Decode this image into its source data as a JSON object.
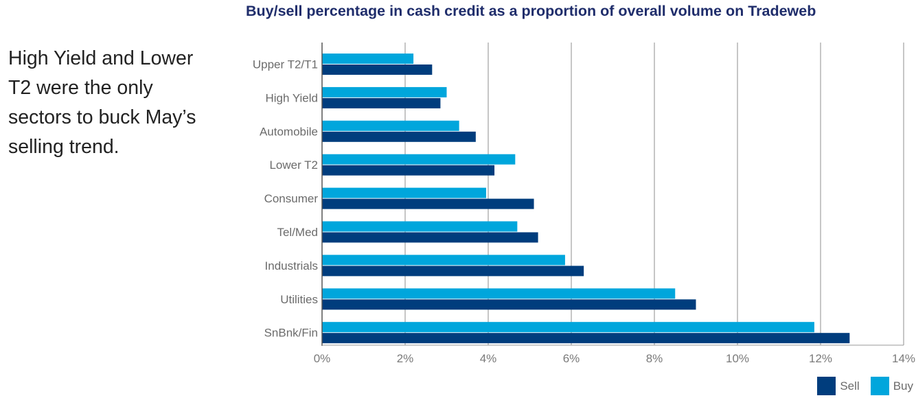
{
  "caption": {
    "lines": [
      "High Yield and Lower",
      "T2 were the only",
      "sectors to buck May’s",
      "selling trend."
    ]
  },
  "chart_data": {
    "type": "bar",
    "orientation": "horizontal",
    "title": "Buy/sell percentage in cash credit as a proportion of overall volume on Tradeweb",
    "xlabel": "",
    "ylabel": "",
    "categories": [
      "Upper T2/T1",
      "High Yield",
      "Automobile",
      "Lower T2",
      "Consumer",
      "Tel/Med",
      "Industrials",
      "Utilities",
      "SnBnk/Fin"
    ],
    "series": [
      {
        "name": "Buy",
        "color": "#00a6dc",
        "values": [
          2.2,
          3.0,
          3.3,
          4.65,
          3.95,
          4.7,
          5.85,
          8.5,
          11.85
        ]
      },
      {
        "name": "Sell",
        "color": "#003d7d",
        "values": [
          2.65,
          2.85,
          3.7,
          4.15,
          5.1,
          5.2,
          6.3,
          9.0,
          12.7
        ]
      }
    ],
    "xlim": [
      0,
      14
    ],
    "xticks": [
      "0%",
      "2%",
      "4%",
      "6%",
      "8%",
      "10%",
      "12%",
      "14%"
    ],
    "grid": "vertical",
    "legend": [
      {
        "label": "Sell",
        "color": "#003d7d"
      },
      {
        "label": "Buy",
        "color": "#00a6dc"
      }
    ],
    "legend_position": "bottom-right"
  }
}
